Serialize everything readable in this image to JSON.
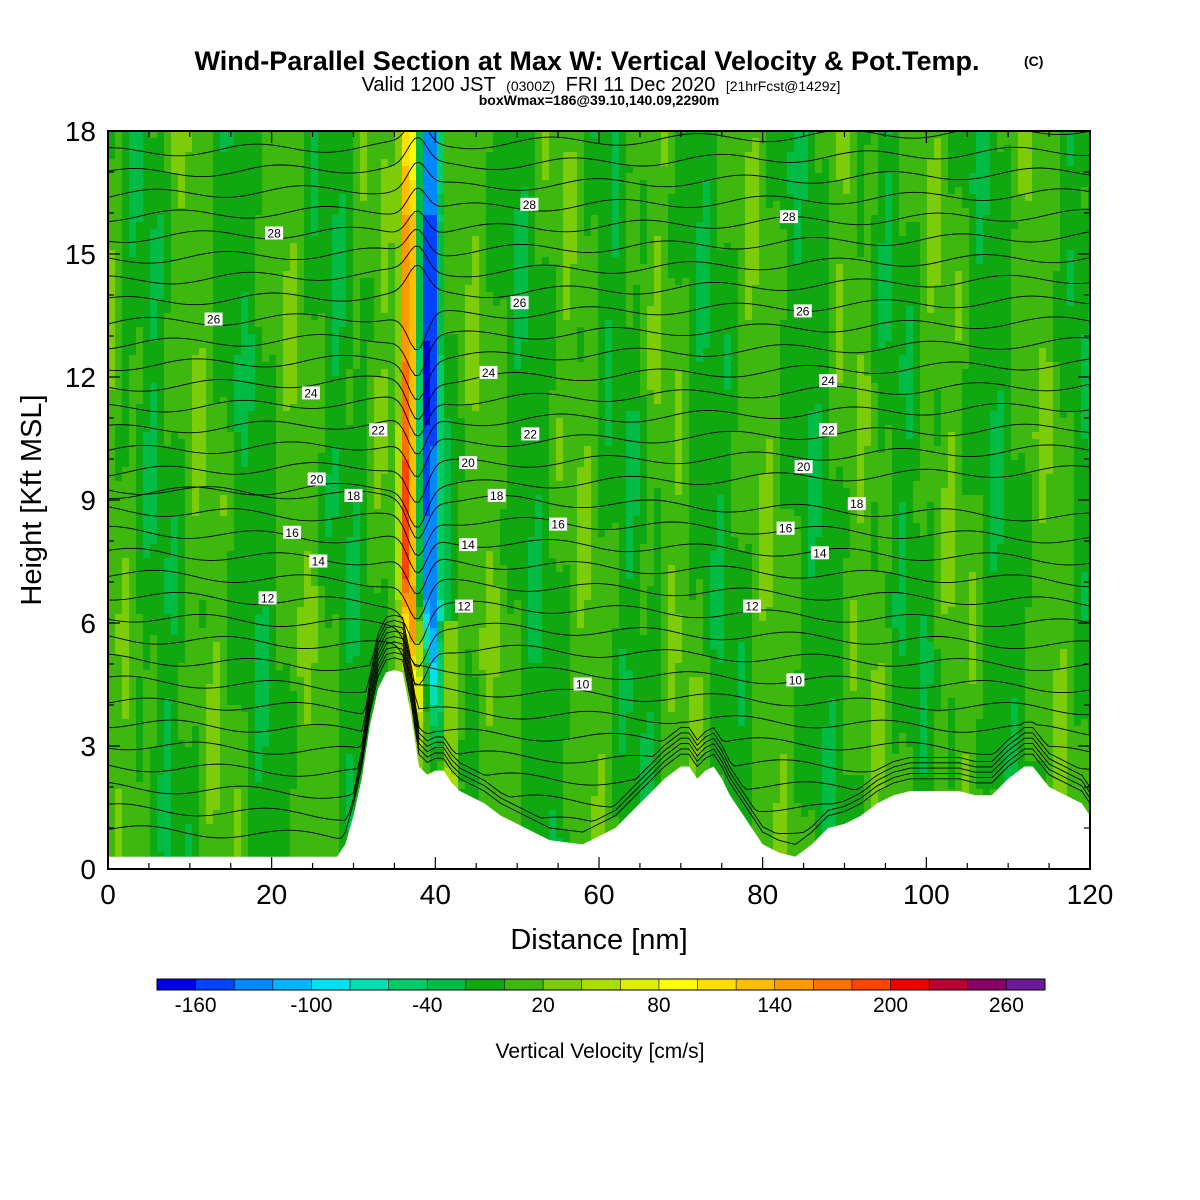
{
  "chart_data": {
    "type": "heatmap",
    "title": "Wind-Parallel Section at Max W: Vertical Velocity & Pot.Temp.",
    "title_mark": "(C)",
    "subtitle": {
      "part1": "Valid 1200 JST",
      "part2": "(0300Z)",
      "part3": "FRI 11 Dec 2020",
      "part4": "[21hrFcst@1429z]"
    },
    "subtitle2": "boxWmax=186@39.10,140.09,2290m",
    "xlabel": "Distance [nm]",
    "ylabel": "Height [Kft MSL]",
    "xlim": [
      0,
      120
    ],
    "ylim": [
      0,
      18
    ],
    "x_ticks": [
      "0",
      "20",
      "40",
      "60",
      "80",
      "100",
      "120"
    ],
    "y_ticks": [
      "0",
      "3",
      "6",
      "9",
      "12",
      "15",
      "18"
    ],
    "colorbar": {
      "label": "Vertical Velocity [cm/s]",
      "range": [
        -180,
        280
      ],
      "step": 20,
      "tick_labels": [
        "-160",
        "-100",
        "-40",
        "20",
        "80",
        "140",
        "200",
        "260"
      ],
      "colors": [
        "#0000ee",
        "#0044ff",
        "#0088ff",
        "#00b4ff",
        "#00e0ee",
        "#00e0b0",
        "#00cc66",
        "#00bb44",
        "#10a810",
        "#3eb80e",
        "#7ccc0a",
        "#aadd00",
        "#ddee00",
        "#ffff00",
        "#ffe000",
        "#ffbf00",
        "#ff9900",
        "#ff7000",
        "#ff4400",
        "#ee0000",
        "#bb0033",
        "#880066",
        "#6a1a9a"
      ]
    },
    "background_level": 0,
    "updraft_peak": 186,
    "isentrope_labels": [
      {
        "value": "28",
        "x": 20.3,
        "y": 15.5
      },
      {
        "value": "28",
        "x": 51.5,
        "y": 16.2
      },
      {
        "value": "28",
        "x": 83.2,
        "y": 15.9
      },
      {
        "value": "26",
        "x": 12.9,
        "y": 13.4
      },
      {
        "value": "26",
        "x": 50.3,
        "y": 13.8
      },
      {
        "value": "26",
        "x": 84.9,
        "y": 13.6
      },
      {
        "value": "24",
        "x": 24.8,
        "y": 11.6
      },
      {
        "value": "24",
        "x": 46.5,
        "y": 12.1
      },
      {
        "value": "24",
        "x": 88.0,
        "y": 11.9
      },
      {
        "value": "22",
        "x": 33.0,
        "y": 10.7
      },
      {
        "value": "22",
        "x": 51.6,
        "y": 10.6
      },
      {
        "value": "22",
        "x": 88.0,
        "y": 10.7
      },
      {
        "value": "20",
        "x": 25.5,
        "y": 9.5
      },
      {
        "value": "20",
        "x": 44.0,
        "y": 9.9
      },
      {
        "value": "20",
        "x": 85.0,
        "y": 9.8
      },
      {
        "value": "18",
        "x": 30.0,
        "y": 9.1
      },
      {
        "value": "18",
        "x": 47.5,
        "y": 9.1
      },
      {
        "value": "18",
        "x": 91.5,
        "y": 8.9
      },
      {
        "value": "16",
        "x": 22.5,
        "y": 8.2
      },
      {
        "value": "16",
        "x": 55.0,
        "y": 8.4
      },
      {
        "value": "16",
        "x": 82.8,
        "y": 8.3
      },
      {
        "value": "14",
        "x": 25.7,
        "y": 7.5
      },
      {
        "value": "14",
        "x": 44.0,
        "y": 7.9
      },
      {
        "value": "14",
        "x": 87.0,
        "y": 7.7
      },
      {
        "value": "12",
        "x": 19.5,
        "y": 6.6
      },
      {
        "value": "12",
        "x": 43.5,
        "y": 6.4
      },
      {
        "value": "12",
        "x": 78.7,
        "y": 6.4
      },
      {
        "value": "10",
        "x": 58.0,
        "y": 4.5
      },
      {
        "value": "10",
        "x": 84.0,
        "y": 4.6
      }
    ],
    "terrain_profile": [
      [
        0,
        0.3
      ],
      [
        10,
        0.3
      ],
      [
        20,
        0.3
      ],
      [
        28,
        0.3
      ],
      [
        29,
        0.6
      ],
      [
        30,
        1.3
      ],
      [
        31,
        2.2
      ],
      [
        32,
        3.5
      ],
      [
        33,
        4.4
      ],
      [
        34,
        4.8
      ],
      [
        35,
        4.85
      ],
      [
        36,
        4.8
      ],
      [
        37,
        3.8
      ],
      [
        38,
        2.5
      ],
      [
        39,
        2.3
      ],
      [
        40,
        2.4
      ],
      [
        41,
        2.4
      ],
      [
        42,
        2.1
      ],
      [
        43,
        1.9
      ],
      [
        44,
        1.8
      ],
      [
        46,
        1.6
      ],
      [
        48,
        1.3
      ],
      [
        50,
        1.1
      ],
      [
        52,
        0.9
      ],
      [
        54,
        0.7
      ],
      [
        58,
        0.6
      ],
      [
        60,
        0.8
      ],
      [
        62,
        1.0
      ],
      [
        64,
        1.4
      ],
      [
        66,
        1.8
      ],
      [
        68,
        2.2
      ],
      [
        70,
        2.5
      ],
      [
        71,
        2.5
      ],
      [
        72,
        2.2
      ],
      [
        73,
        2.4
      ],
      [
        74,
        2.5
      ],
      [
        75,
        2.2
      ],
      [
        76,
        1.8
      ],
      [
        78,
        1.2
      ],
      [
        80,
        0.6
      ],
      [
        82,
        0.4
      ],
      [
        84,
        0.3
      ],
      [
        86,
        0.6
      ],
      [
        88,
        1.0
      ],
      [
        90,
        1.1
      ],
      [
        92,
        1.3
      ],
      [
        94,
        1.6
      ],
      [
        96,
        1.8
      ],
      [
        98,
        1.9
      ],
      [
        100,
        1.9
      ],
      [
        102,
        1.9
      ],
      [
        104,
        1.9
      ],
      [
        106,
        1.8
      ],
      [
        108,
        1.8
      ],
      [
        110,
        2.2
      ],
      [
        112,
        2.5
      ],
      [
        113,
        2.5
      ],
      [
        115,
        2.0
      ],
      [
        117,
        1.8
      ],
      [
        119,
        1.6
      ],
      [
        120,
        1.3
      ]
    ]
  }
}
